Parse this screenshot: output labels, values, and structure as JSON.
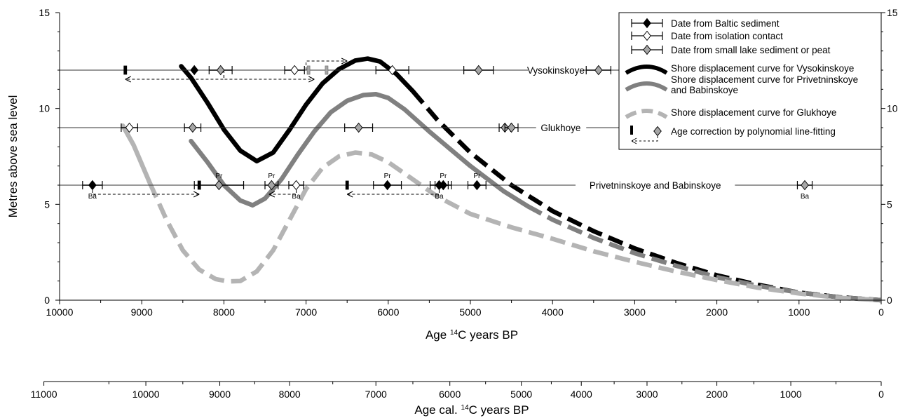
{
  "chart_data": {
    "type": "line",
    "ylabel": "Metres above sea level",
    "xlabel": "Age {14}C years BP",
    "xlabel_parts": {
      "pre": "Age ",
      "sup": "14",
      "post": "C years BP"
    },
    "x2label_parts": {
      "pre": "Age cal. ",
      "sup": "14",
      "post": "C years BP"
    },
    "xlim": [
      10000,
      0
    ],
    "ylim": [
      0,
      15
    ],
    "x_ticks": [
      "10000",
      "9000",
      "8000",
      "7000",
      "6000",
      "5000",
      "4000",
      "3000",
      "2000",
      "1000",
      "0"
    ],
    "x_tick_values": [
      10000,
      9000,
      8000,
      7000,
      6000,
      5000,
      4000,
      3000,
      2000,
      1000,
      0
    ],
    "y_ticks": [
      "0",
      "5",
      "10",
      "15"
    ],
    "y_tick_values": [
      0,
      5,
      10,
      15
    ],
    "cal_ticks": [
      "11000",
      "10000",
      "9000",
      "8000",
      "7000",
      "6000",
      "5000",
      "4000",
      "3000",
      "2000",
      "1000",
      "0"
    ],
    "cal_tick_values": [
      11000,
      10000,
      9000,
      8000,
      7000,
      6000,
      5000,
      4000,
      3000,
      2000,
      1000,
      0
    ],
    "cal_to_c14": [
      [
        11000,
        9850
      ],
      [
        10000,
        8950
      ],
      [
        9000,
        8050
      ],
      [
        8000,
        7200
      ],
      [
        7000,
        6150
      ],
      [
        6000,
        5250
      ],
      [
        5000,
        4380
      ],
      [
        4000,
        3650
      ],
      [
        3000,
        2850
      ],
      [
        2000,
        2000
      ],
      [
        1000,
        1100
      ],
      [
        0,
        0
      ]
    ],
    "sites": [
      {
        "name": "Vysokinskoye",
        "level": 12.0
      },
      {
        "name": "Glukhoye",
        "level": 9.0
      },
      {
        "name": "Privetninskoye and Babinskoye",
        "level": 6.0
      }
    ],
    "legend": [
      {
        "label": "Date from Baltic sediment",
        "marker": "diamond-black"
      },
      {
        "label": "Date from isolation contact",
        "marker": "diamond-white"
      },
      {
        "label": "Date from small lake sediment or peat",
        "marker": "diamond-gray"
      },
      {
        "label": "Shore displacement curve for Vysokinskoye",
        "marker": "line-black"
      },
      {
        "label": "Shore displacement curve for Privetninskoye and Babinskoye",
        "marker": "line-gray",
        "lines": [
          "Shore displacement curve for Privetninskoye",
          "and Babinskoye"
        ]
      },
      {
        "label": "Shore displacement curve for Glukhoye",
        "marker": "line-lightgray-dashed"
      },
      {
        "label": "Age correction by polynomial line-fitting",
        "marker": "correction"
      }
    ],
    "series": [
      {
        "name": "Shore displacement curve for Vysokinskoye",
        "color": "#000000",
        "solid": [
          [
            8520,
            12.2
          ],
          [
            8400,
            11.6
          ],
          [
            8200,
            10.3
          ],
          [
            8000,
            8.9
          ],
          [
            7800,
            7.8
          ],
          [
            7600,
            7.25
          ],
          [
            7400,
            7.7
          ],
          [
            7200,
            8.9
          ],
          [
            7000,
            10.2
          ],
          [
            6800,
            11.3
          ],
          [
            6600,
            12.05
          ],
          [
            6400,
            12.5
          ],
          [
            6250,
            12.6
          ],
          [
            6100,
            12.45
          ],
          [
            5900,
            11.8
          ],
          [
            5700,
            10.9
          ]
        ],
        "dashed": [
          [
            5700,
            10.9
          ],
          [
            5400,
            9.4
          ],
          [
            5000,
            7.7
          ],
          [
            4500,
            6.0
          ],
          [
            4000,
            4.65
          ],
          [
            3500,
            3.6
          ],
          [
            3000,
            2.7
          ],
          [
            2500,
            1.95
          ],
          [
            2000,
            1.3
          ],
          [
            1500,
            0.8
          ],
          [
            1000,
            0.4
          ],
          [
            500,
            0.15
          ],
          [
            0,
            0.0
          ]
        ]
      },
      {
        "name": "Shore displacement curve for Privetninskoye and Babinskoye",
        "color": "#808080",
        "solid": [
          [
            8400,
            8.3
          ],
          [
            8200,
            7.2
          ],
          [
            8000,
            6.0
          ],
          [
            7800,
            5.2
          ],
          [
            7650,
            4.95
          ],
          [
            7500,
            5.3
          ],
          [
            7300,
            6.3
          ],
          [
            7100,
            7.6
          ],
          [
            6900,
            8.8
          ],
          [
            6700,
            9.8
          ],
          [
            6500,
            10.4
          ],
          [
            6300,
            10.7
          ],
          [
            6150,
            10.75
          ],
          [
            6000,
            10.55
          ],
          [
            5800,
            9.95
          ],
          [
            5500,
            8.8
          ],
          [
            5000,
            7.0
          ],
          [
            4600,
            5.7
          ],
          [
            4300,
            4.9
          ]
        ],
        "dashed": [
          [
            4300,
            4.9
          ],
          [
            4000,
            4.2
          ],
          [
            3500,
            3.25
          ],
          [
            3000,
            2.45
          ],
          [
            2500,
            1.8
          ],
          [
            2000,
            1.2
          ],
          [
            1500,
            0.75
          ],
          [
            1000,
            0.4
          ],
          [
            500,
            0.15
          ],
          [
            0,
            0.0
          ]
        ]
      },
      {
        "name": "Shore displacement curve for Glukhoye",
        "color": "#b4b4b4",
        "solid": [
          [
            9230,
            9.1
          ],
          [
            9100,
            8.1
          ],
          [
            8900,
            6.1
          ]
        ],
        "dashed": [
          [
            8900,
            6.1
          ],
          [
            8700,
            4.2
          ],
          [
            8500,
            2.6
          ],
          [
            8300,
            1.6
          ],
          [
            8100,
            1.1
          ],
          [
            7950,
            0.98
          ],
          [
            7800,
            1.0
          ],
          [
            7600,
            1.5
          ],
          [
            7400,
            2.6
          ],
          [
            7200,
            4.2
          ],
          [
            7000,
            5.8
          ],
          [
            6800,
            6.9
          ],
          [
            6600,
            7.5
          ],
          [
            6400,
            7.7
          ],
          [
            6200,
            7.6
          ],
          [
            6000,
            7.2
          ],
          [
            5700,
            6.3
          ],
          [
            5400,
            5.4
          ],
          [
            5000,
            4.5
          ],
          [
            4500,
            3.8
          ],
          [
            4000,
            3.2
          ],
          [
            3500,
            2.55
          ],
          [
            3000,
            2.0
          ],
          [
            2500,
            1.5
          ],
          [
            2000,
            1.05
          ],
          [
            1500,
            0.65
          ],
          [
            1000,
            0.35
          ],
          [
            500,
            0.12
          ],
          [
            0,
            0.0
          ]
        ]
      }
    ],
    "dates": [
      {
        "site": "Vysokinskoye",
        "x": 8360,
        "err": 0,
        "type": "black"
      },
      {
        "site": "Vysokinskoye",
        "x": 8040,
        "err": 140,
        "type": "gray"
      },
      {
        "site": "Vysokinskoye",
        "x": 7140,
        "err": 120,
        "type": "white"
      },
      {
        "site": "Vysokinskoye",
        "x": 5950,
        "err": 200,
        "type": "white"
      },
      {
        "site": "Vysokinskoye",
        "x": 4900,
        "err": 180,
        "type": "gray"
      },
      {
        "site": "Vysokinskoye",
        "x": 3440,
        "err": 150,
        "type": "gray"
      },
      {
        "site": "Glukhoye",
        "x": 9150,
        "err": 100,
        "type": "white"
      },
      {
        "site": "Glukhoye",
        "x": 8380,
        "err": 100,
        "type": "gray"
      },
      {
        "site": "Glukhoye",
        "x": 6360,
        "err": 170,
        "type": "gray"
      },
      {
        "site": "Glukhoye",
        "x": 4580,
        "err": 70,
        "type": "gray"
      },
      {
        "site": "Glukhoye",
        "x": 4500,
        "err": 80,
        "type": "gray"
      },
      {
        "site": "Privetninskoye and Babinskoye",
        "x": 9600,
        "err": 120,
        "type": "black",
        "label": "Ba",
        "label_pos": "below"
      },
      {
        "site": "Privetninskoye and Babinskoye",
        "x": 8060,
        "err": 300,
        "type": "gray",
        "label": "Pr",
        "label_pos": "above"
      },
      {
        "site": "Privetninskoye and Babinskoye",
        "x": 7420,
        "err": 80,
        "type": "gray",
        "label": "Pr",
        "label_pos": "above"
      },
      {
        "site": "Privetninskoye and Babinskoye",
        "x": 7120,
        "err": 90,
        "type": "white",
        "label": "Ba",
        "label_pos": "below"
      },
      {
        "site": "Privetninskoye and Babinskoye",
        "x": 6010,
        "err": 170,
        "type": "black",
        "label": "Pr",
        "label_pos": "above"
      },
      {
        "site": "Privetninskoye and Babinskoye",
        "x": 5380,
        "err": 110,
        "type": "black",
        "label": "Ba",
        "label_pos": "below"
      },
      {
        "site": "Privetninskoye and Babinskoye",
        "x": 5330,
        "err": 100,
        "type": "black",
        "label": "Pr",
        "label_pos": "above"
      },
      {
        "site": "Privetninskoye and Babinskoye",
        "x": 4920,
        "err": 110,
        "type": "black",
        "label": "Pr",
        "label_pos": "above"
      },
      {
        "site": "Privetninskoye and Babinskoye",
        "x": 930,
        "err": 90,
        "type": "gray",
        "label": "Ba",
        "label_pos": "below"
      }
    ],
    "corrections": [
      {
        "site": "Vysokinskoye",
        "from": 8000,
        "to": 9200,
        "drop": true
      },
      {
        "site": "Vysokinskoye",
        "from": 8000,
        "to": 6900,
        "drop": true
      },
      {
        "site": "Vysokinskoye",
        "from": 7000,
        "to": 6500,
        "drop": false
      },
      {
        "site": "Privetninskoye and Babinskoye",
        "from": 9600,
        "to": 8300,
        "drop": true
      },
      {
        "site": "Privetninskoye and Babinskoye",
        "from": 7120,
        "to": 7450,
        "drop": true
      },
      {
        "site": "Privetninskoye and Babinskoye",
        "from": 5380,
        "to": 6500,
        "drop": true
      }
    ],
    "correction_marks": [
      {
        "site": "Vysokinskoye",
        "x": 9200,
        "color": "black"
      },
      {
        "site": "Vysokinskoye",
        "x": 6970,
        "color": "gray"
      },
      {
        "site": "Vysokinskoye",
        "x": 6750,
        "color": "gray"
      },
      {
        "site": "Privetninskoye and Babinskoye",
        "x": 8300,
        "color": "black"
      },
      {
        "site": "Privetninskoye and Babinskoye",
        "x": 6500,
        "color": "black"
      }
    ],
    "legend_placement": "top-right",
    "grid": false
  }
}
